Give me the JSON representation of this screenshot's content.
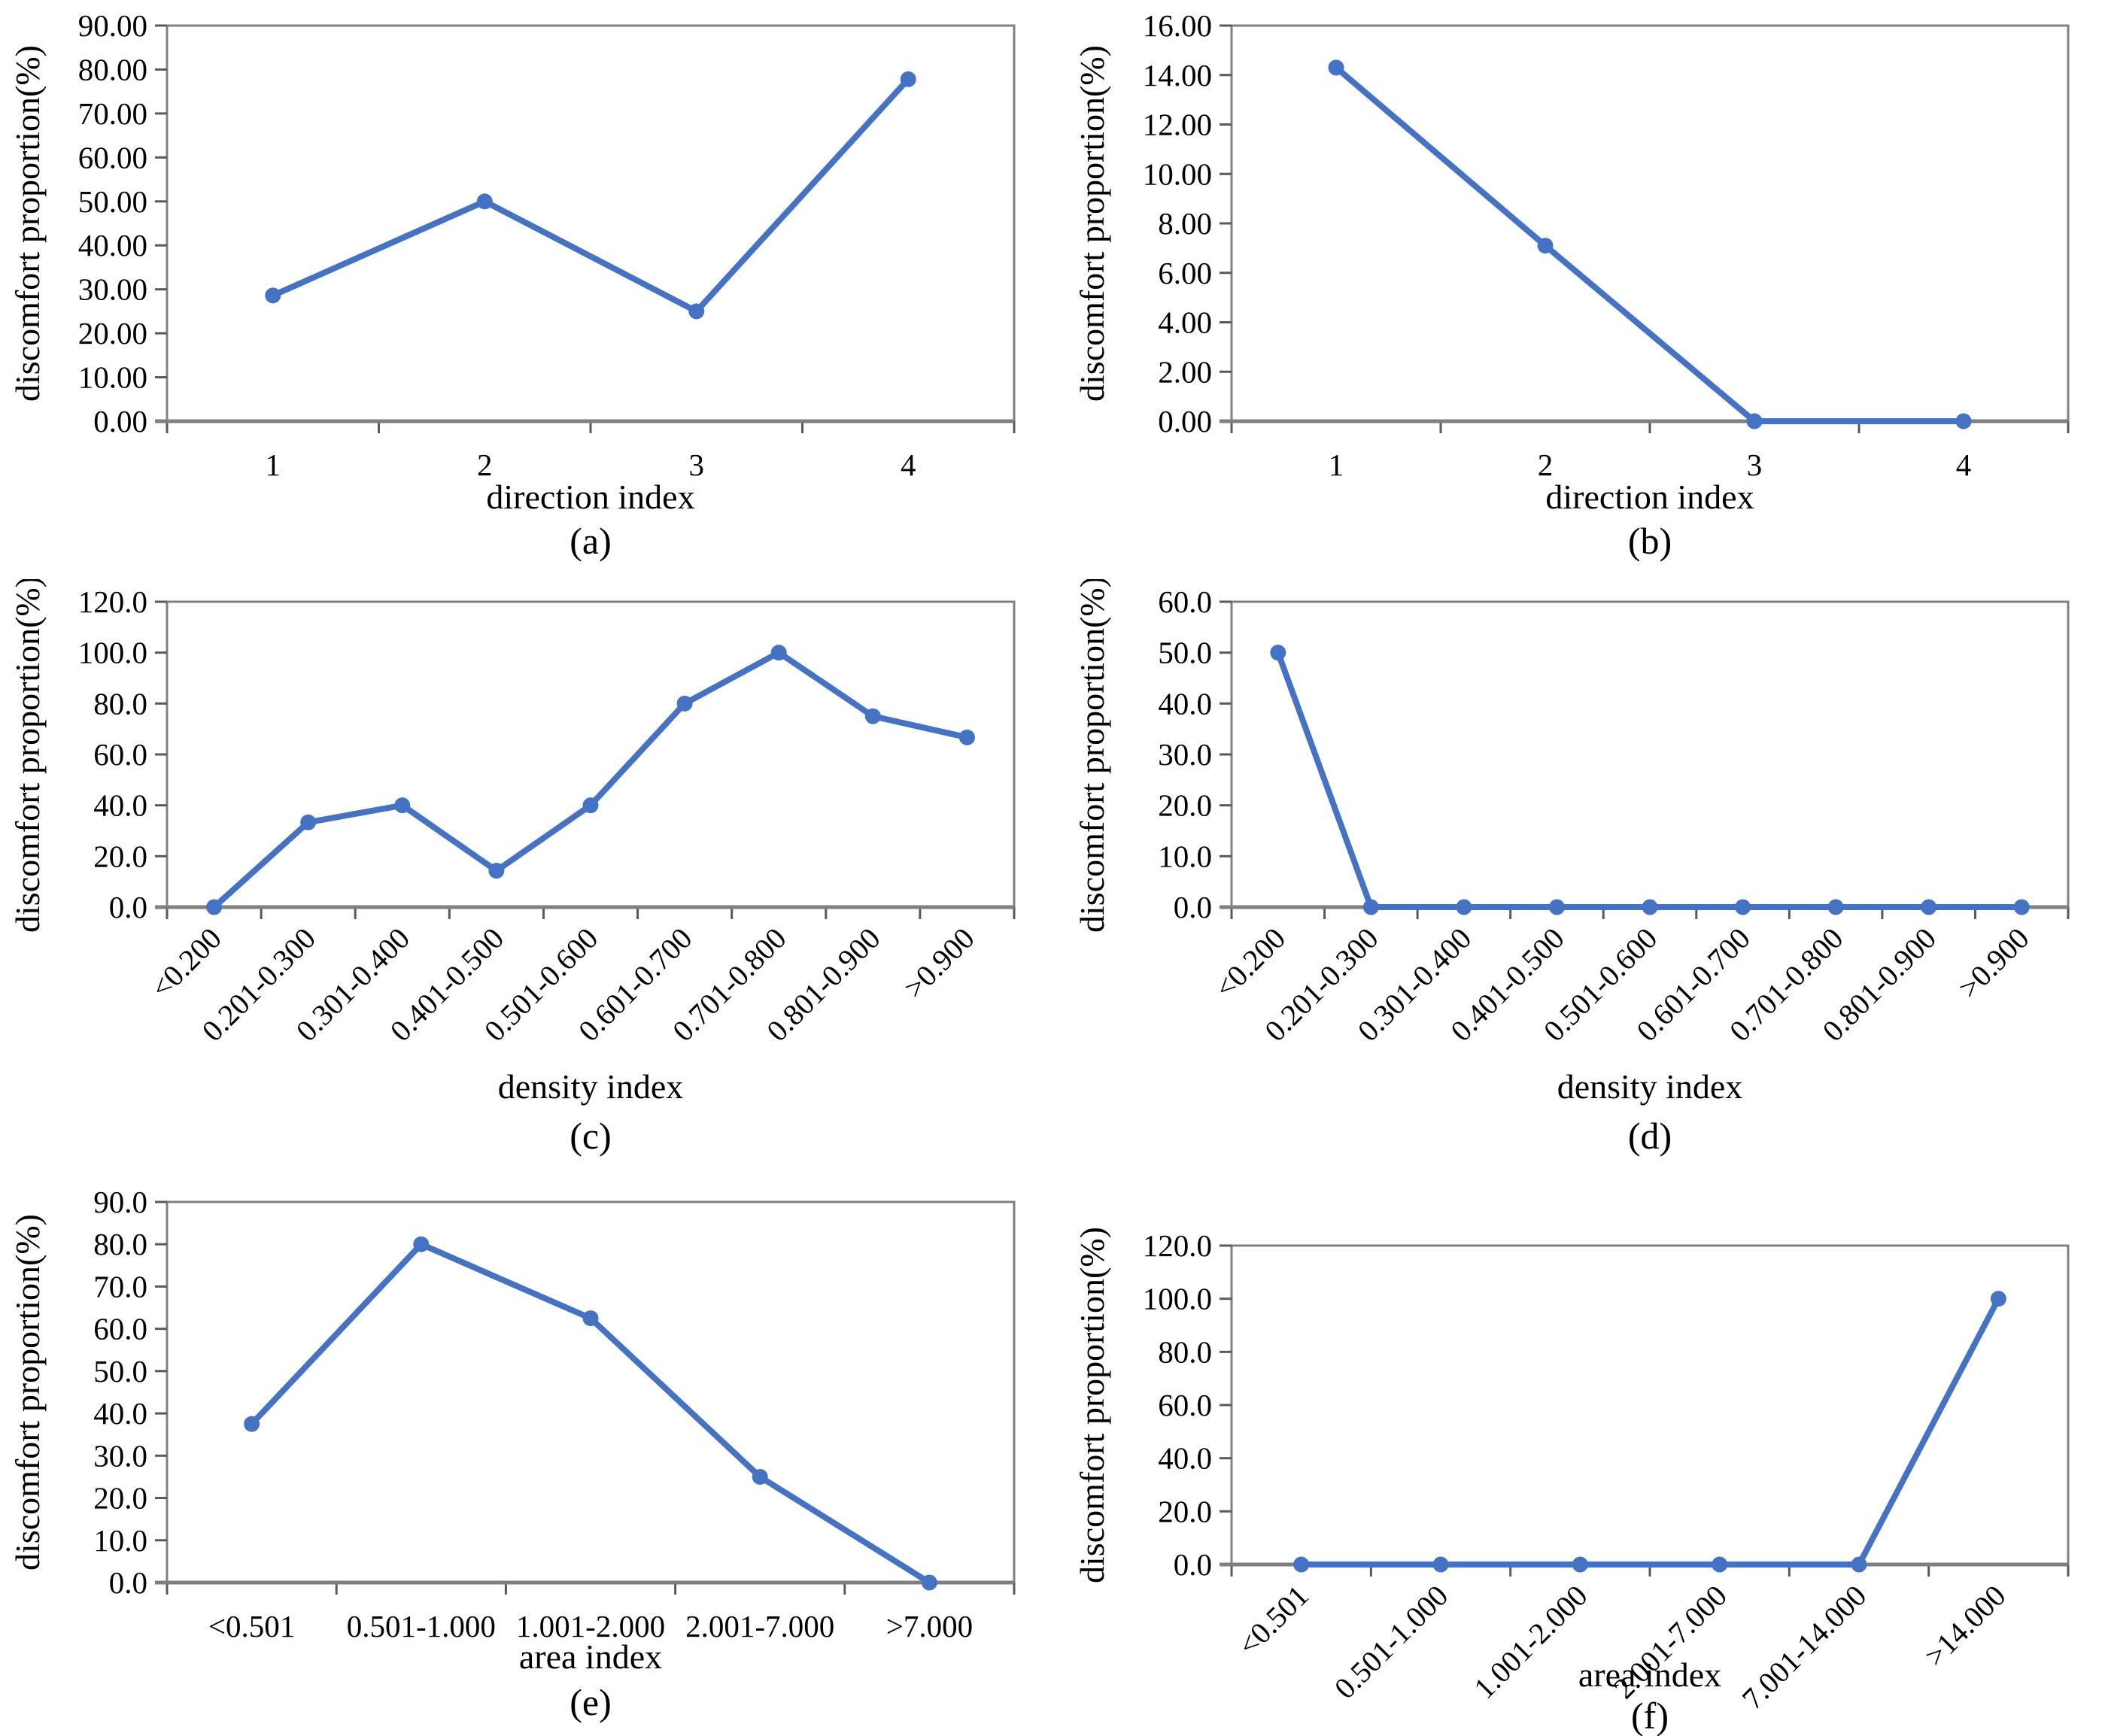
{
  "figure": {
    "description": "Six line charts of discomfort proportion versus direction, density and area indices",
    "line_color": "#4472C4",
    "marker_color": "#4472C4",
    "frame_color": "#808080",
    "tick_color": "#595959",
    "text_color": "#000000"
  },
  "chart_data": [
    {
      "type": "line",
      "caption": "(a)",
      "xlabel": "direction index",
      "ylabel": "discomfort proportion(%)",
      "categories": [
        "1",
        "2",
        "3",
        "4"
      ],
      "values": [
        28.6,
        50.0,
        25.0,
        77.8
      ],
      "ylim": [
        0,
        90
      ],
      "ystep": 10,
      "y_decimals": 2,
      "rotated_x_labels": false,
      "grid": false,
      "legend": "none"
    },
    {
      "type": "line",
      "caption": "(b)",
      "xlabel": "direction index",
      "ylabel": "discomfort proportion(%)",
      "categories": [
        "1",
        "2",
        "3",
        "4"
      ],
      "values": [
        14.3,
        7.1,
        0.0,
        0.0
      ],
      "ylim": [
        0,
        16
      ],
      "ystep": 2,
      "y_decimals": 2,
      "rotated_x_labels": false,
      "grid": false,
      "legend": "none"
    },
    {
      "type": "line",
      "caption": "(c)",
      "xlabel": "density index",
      "ylabel": "discomfort proportion(%)",
      "categories": [
        "<0.200",
        "0.201-0.300",
        "0.301-0.400",
        "0.401-0.500",
        "0.501-0.600",
        "0.601-0.700",
        "0.701-0.800",
        "0.801-0.900",
        ">0.900"
      ],
      "values": [
        0.0,
        33.3,
        40.0,
        14.3,
        40.0,
        80.0,
        100.0,
        75.0,
        66.7
      ],
      "ylim": [
        0,
        120
      ],
      "ystep": 20,
      "y_decimals": 1,
      "rotated_x_labels": true,
      "grid": false,
      "legend": "none"
    },
    {
      "type": "line",
      "caption": "(d)",
      "xlabel": "density index",
      "ylabel": "discomfort proportion(%)",
      "categories": [
        "<0.200",
        "0.201-0.300",
        "0.301-0.400",
        "0.401-0.500",
        "0.501-0.600",
        "0.601-0.700",
        "0.701-0.800",
        "0.801-0.900",
        ">0.900"
      ],
      "values": [
        50.0,
        0.0,
        0.0,
        0.0,
        0.0,
        0.0,
        0.0,
        0.0,
        0.0
      ],
      "ylim": [
        0,
        60
      ],
      "ystep": 10,
      "y_decimals": 1,
      "rotated_x_labels": true,
      "grid": false,
      "legend": "none"
    },
    {
      "type": "line",
      "caption": "(e)",
      "xlabel": "area index",
      "ylabel": "discomfort proportion(%)",
      "categories": [
        "<0.501",
        "0.501-1.000",
        "1.001-2.000",
        "2.001-7.000",
        ">7.000"
      ],
      "values": [
        37.5,
        80.0,
        62.5,
        25.0,
        0.0
      ],
      "ylim": [
        0,
        90
      ],
      "ystep": 10,
      "y_decimals": 1,
      "rotated_x_labels": false,
      "grid": false,
      "legend": "none"
    },
    {
      "type": "line",
      "caption": "(f)",
      "xlabel": "area index",
      "ylabel": "discomfort proportion(%)",
      "categories": [
        "<0.501",
        "0.501-1.000",
        "1.001-2.000",
        "2.001-7.000",
        "7.001-14.000",
        ">14.000"
      ],
      "values": [
        0.0,
        0.0,
        0.0,
        0.0,
        0.0,
        100.0
      ],
      "ylim": [
        0,
        120
      ],
      "ystep": 20,
      "y_decimals": 1,
      "rotated_x_labels": true,
      "grid": false,
      "legend": "none"
    }
  ]
}
